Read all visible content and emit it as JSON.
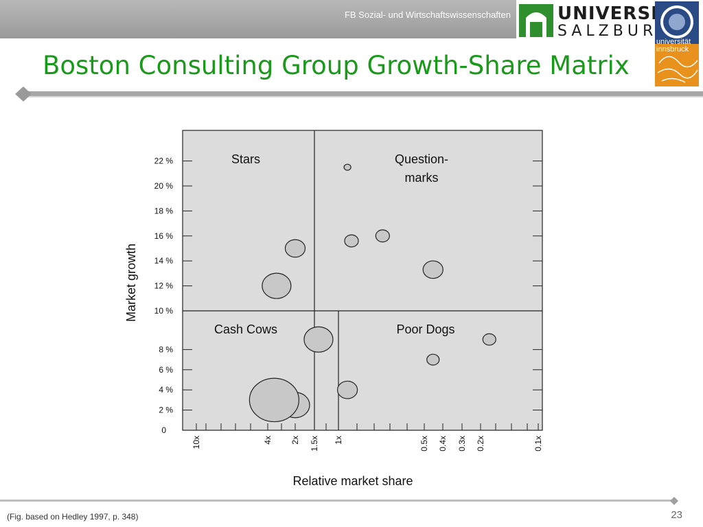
{
  "header": {
    "faculty": "FB Sozial- und Wirtschaftswissenschaften",
    "logo_salzburg_line1": "UNIVERSITÄT",
    "logo_salzburg_line2": "SALZBURG",
    "logo_innsbruck_line1": "universität",
    "logo_innsbruck_line2": "innsbruck"
  },
  "slide": {
    "title": "Boston Consulting Group Growth-Share Matrix",
    "footnote": "(Fig. based on Hedley 1997, p. 348)",
    "page_number": "23"
  },
  "colors": {
    "title": "#1a9a1a",
    "plot_background": "#dcdcdc",
    "bubble_fill": "#c8c8c8",
    "logo_green": "#2f8f2f",
    "logo_orange": "#e8911c",
    "logo_blue": "#2a4a86"
  },
  "chart_data": {
    "type": "scatter",
    "xlabel": "Relative market share",
    "ylabel": "Market growth",
    "x_scale": "log",
    "x_reversed": true,
    "x_ticks": [
      {
        "label": "10x",
        "value": 10
      },
      {
        "label": "4x",
        "value": 4
      },
      {
        "label": "2x",
        "value": 2
      },
      {
        "label": "1.5x",
        "value": 1.5
      },
      {
        "label": "1x",
        "value": 1
      },
      {
        "label": "0.5x",
        "value": 0.5
      },
      {
        "label": "0.4x",
        "value": 0.4
      },
      {
        "label": "0.3x",
        "value": 0.3
      },
      {
        "label": "0.2x",
        "value": 0.2
      },
      {
        "label": "0.1x",
        "value": 0.1
      }
    ],
    "y_ticks_upper": [
      {
        "label": "10 %",
        "value": 10
      },
      {
        "label": "12 %",
        "value": 12
      },
      {
        "label": "14 %",
        "value": 14
      },
      {
        "label": "16 %",
        "value": 16
      },
      {
        "label": "18 %",
        "value": 18
      },
      {
        "label": "20 %",
        "value": 20
      },
      {
        "label": "22 %",
        "value": 22
      }
    ],
    "y_ticks_lower": [
      {
        "label": "0",
        "value": 0
      },
      {
        "label": "2 %",
        "value": 2
      },
      {
        "label": "4 %",
        "value": 4
      },
      {
        "label": "6 %",
        "value": 6
      },
      {
        "label": "8 %",
        "value": 8
      }
    ],
    "quadrant_labels": [
      {
        "text": "Stars",
        "quadrant": "top-left"
      },
      {
        "text": "Question-",
        "quadrant": "top-right",
        "line": 1
      },
      {
        "text": "marks",
        "quadrant": "top-right",
        "line": 2
      },
      {
        "text": "Cash Cows",
        "quadrant": "bottom-left"
      },
      {
        "text": "Poor Dogs",
        "quadrant": "bottom-right"
      }
    ],
    "upper_divider_x": 1.5,
    "lower_divider_x": 1,
    "points": [
      {
        "x": 0.93,
        "y": 21.5,
        "size": 0.5
      },
      {
        "x": 0.9,
        "y": 15.6,
        "size": 1.0
      },
      {
        "x": 0.7,
        "y": 16.0,
        "size": 1.0
      },
      {
        "x": 0.45,
        "y": 13.3,
        "size": 1.45
      },
      {
        "x": 2.0,
        "y": 15.0,
        "size": 1.45
      },
      {
        "x": 3.2,
        "y": 12.0,
        "size": 2.1
      },
      {
        "x": 1.4,
        "y": 9.0,
        "size": 2.1
      },
      {
        "x": 0.93,
        "y": 4.0,
        "size": 1.45
      },
      {
        "x": 0.45,
        "y": 7.0,
        "size": 0.9
      },
      {
        "x": 0.18,
        "y": 9.0,
        "size": 0.95
      },
      {
        "x": 2.0,
        "y": 2.5,
        "size": 2.1
      },
      {
        "x": 3.4,
        "y": 3.0,
        "size": 3.6
      }
    ]
  }
}
